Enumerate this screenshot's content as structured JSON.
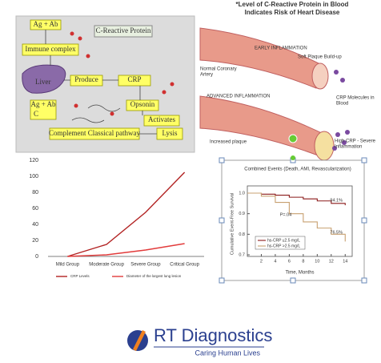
{
  "diagram": {
    "title": "C-Reactive Protein",
    "ag_ab_top": "Ag + Ab",
    "immune_complex": "Immune complex",
    "liver": "Liver",
    "produce": "Produce",
    "crp": "CRP",
    "ag_ab_bottom": [
      "Ag + Ab",
      "C"
    ],
    "opsonin": "Opsonin",
    "activates": "Activates",
    "complement": "Complement Classical pathway",
    "lysis": "Lysis"
  },
  "illustration": {
    "title": [
      "*Level of C-Reactive Protein in Blood",
      "Indicates Risk of Heart Disease"
    ],
    "early": "EARLY INFLAMMATION",
    "soft_plaque": "Soft Plaque Build-up",
    "normal_artery": [
      "Normal Coronary",
      "Artery"
    ],
    "crp_molecules": [
      "CRP Molecules in",
      "Blood"
    ],
    "advanced": "ADVANCED INFLAMMATION",
    "increased_plaque": "Increased plaque",
    "high_crp": [
      "High CRP - Severe",
      "Inflammation"
    ]
  },
  "chart_data": [
    {
      "type": "line",
      "categories": [
        "Mild Group",
        "Moderate Group",
        "Severe Group",
        "Critical Group"
      ],
      "series": [
        {
          "name": "CRP Levels",
          "color": "#b22222",
          "values": [
            0,
            15,
            55,
            105
          ]
        },
        {
          "name": "Diameter of the largest lung lesion",
          "color": "#e23b3b",
          "values": [
            0,
            2,
            8,
            16
          ]
        }
      ],
      "ylim": [
        0,
        120
      ],
      "yticks": [
        0,
        20,
        40,
        60,
        80,
        100,
        120
      ],
      "grid": false,
      "legend": "bottom"
    },
    {
      "type": "line",
      "step": true,
      "title": "Combined Events (Death, AMI, Revascularization)",
      "xlabel": "Time, Months",
      "ylabel": "Cumulative Event-Free Survival",
      "x": [
        0,
        2,
        4,
        6,
        8,
        10,
        12,
        14
      ],
      "series": [
        {
          "name": "hs-CRP ≤2.5 mg/L",
          "color": "#8b1a1a",
          "values": [
            1,
            0.995,
            0.99,
            0.98,
            0.972,
            0.962,
            0.95,
            0.941
          ]
        },
        {
          "name": "hs-CRP >2.5 mg/L",
          "color": "#c8a070",
          "values": [
            1,
            0.985,
            0.955,
            0.9,
            0.86,
            0.83,
            0.8,
            0.765
          ]
        }
      ],
      "annotations": [
        "94.1%",
        "76.5%",
        "P=.04"
      ],
      "xlim": [
        0,
        15
      ],
      "xticks": [
        2,
        4,
        6,
        8,
        10,
        12,
        14
      ],
      "ylim": [
        0.7,
        1.0
      ],
      "yticks": [
        {
          "value": 0.7,
          "label": "0.7"
        },
        {
          "value": 0.8,
          "label": "0.8"
        },
        {
          "value": 0.9,
          "label": "0.9"
        },
        {
          "value": 1.0,
          "label": "1.0"
        }
      ],
      "legend": "lower left"
    }
  ],
  "logo": {
    "name": "RT Diagnostics",
    "tagline": "Caring Human Lives"
  }
}
